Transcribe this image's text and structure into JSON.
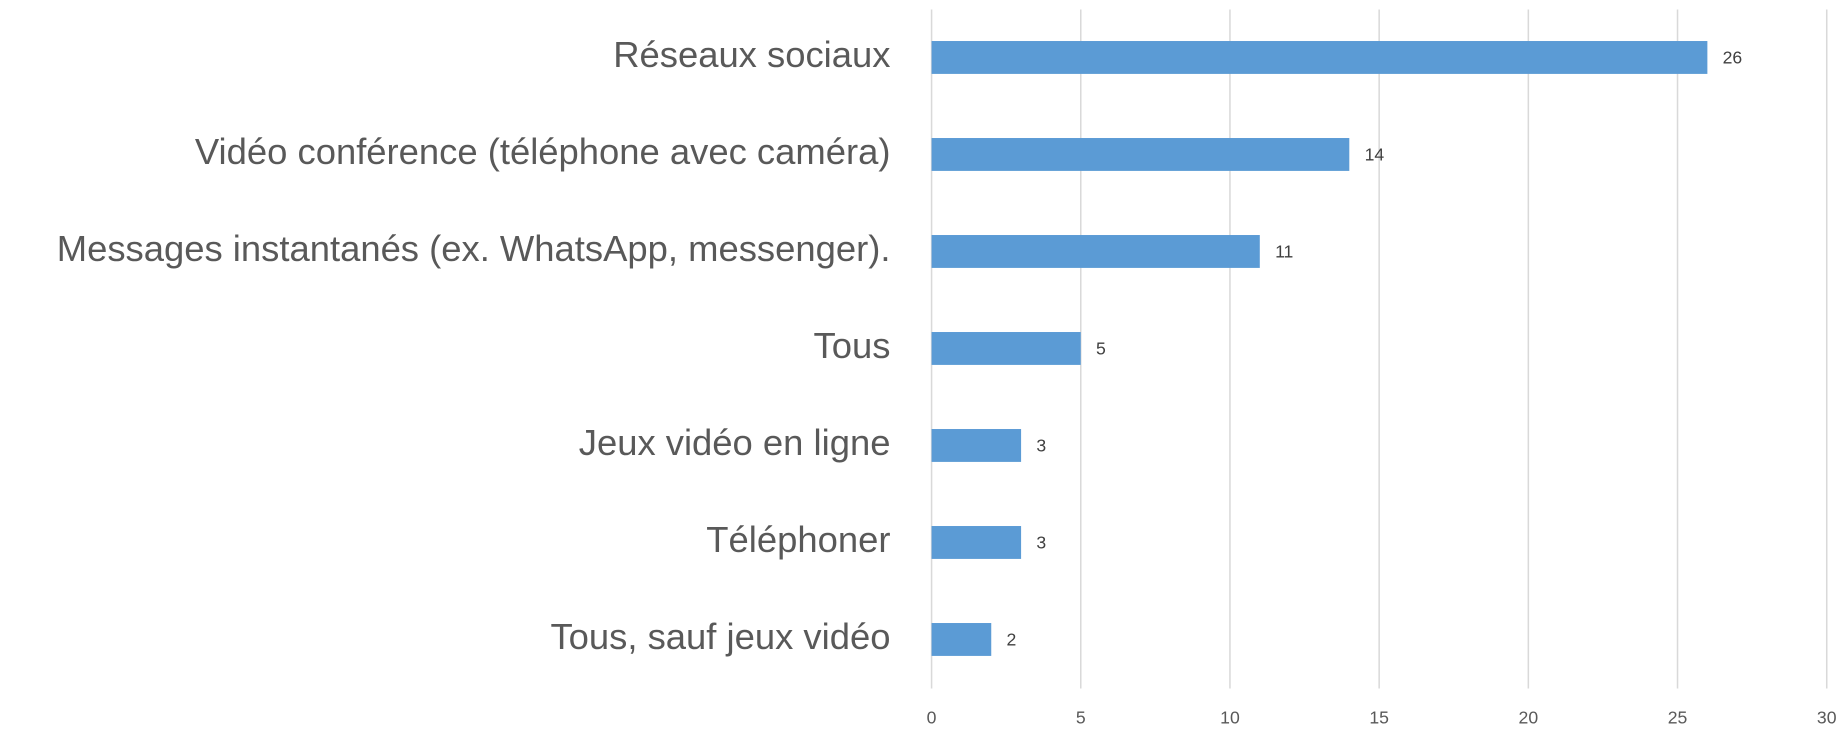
{
  "chart_data": {
    "type": "barh",
    "categories": [
      "Réseaux sociaux",
      "Vidéo conférence (téléphone avec caméra)",
      "Messages instantanés (ex. WhatsApp, messenger).",
      "Tous",
      "Jeux vidéo en ligne",
      "Téléphoner",
      "Tous, sauf jeux vidéo"
    ],
    "values": [
      26,
      14,
      11,
      5,
      3,
      3,
      2
    ],
    "color": "#5b9bd5",
    "xlim": [
      0,
      30
    ],
    "xticks": [
      0,
      5,
      10,
      15,
      20,
      25,
      30
    ],
    "grid": true
  }
}
